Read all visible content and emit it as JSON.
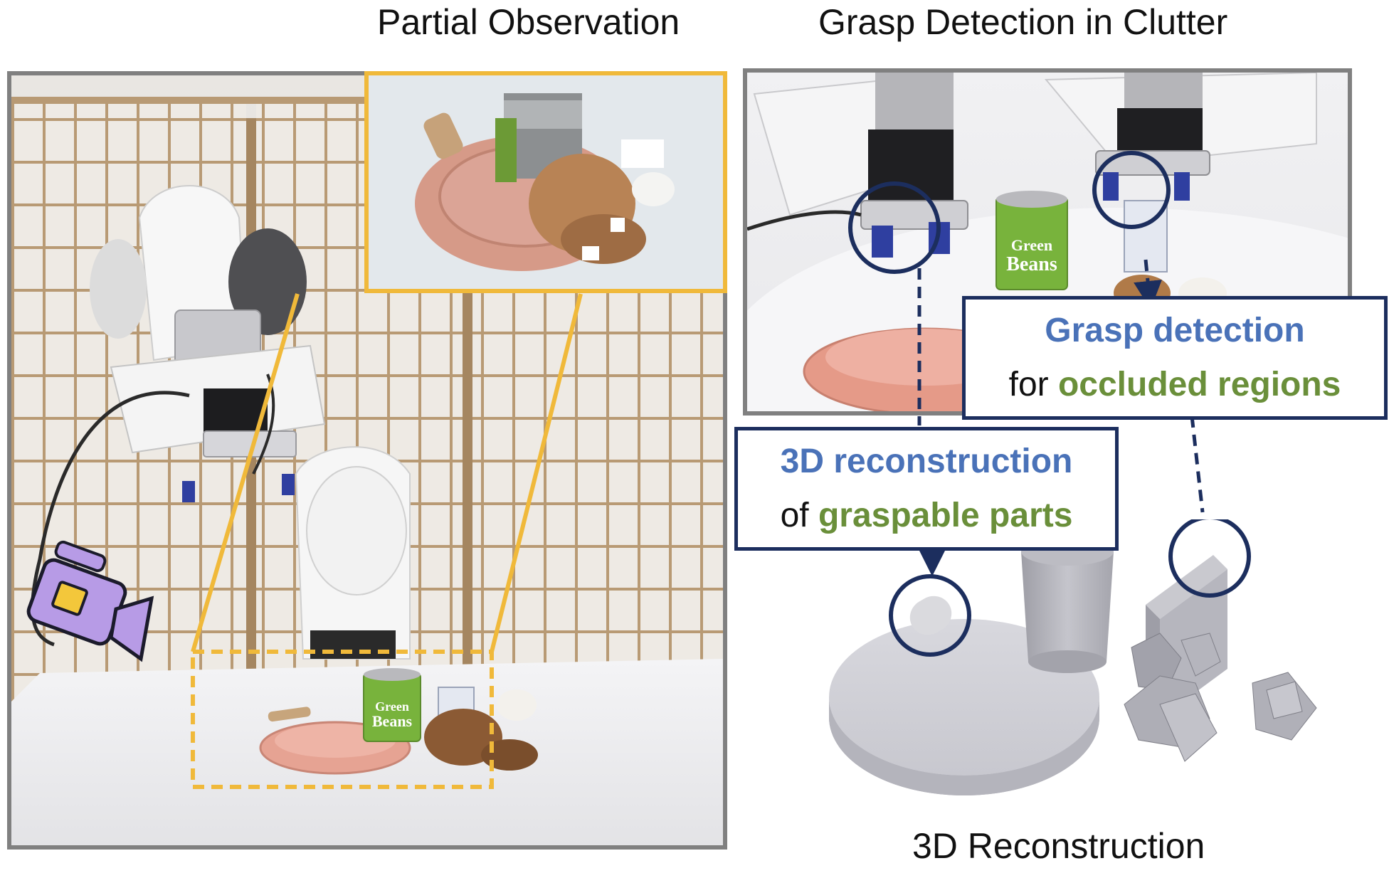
{
  "titles": {
    "partial_observation": "Partial Observation",
    "grasp_detection": "Grasp Detection in Clutter",
    "reconstruction": "3D Reconstruction"
  },
  "callout_grasp": {
    "line1_highlight": "Grasp detection",
    "line2_prefix": "for ",
    "line2_highlight": "occluded regions"
  },
  "callout_recon": {
    "line1_highlight": "3D reconstruction",
    "line2_prefix": "of ",
    "line2_highlight": "graspable parts"
  },
  "can_label": {
    "line1": "Green",
    "line2": "Beans"
  },
  "colors": {
    "accent_yellow": "#f0b93a",
    "callout_border": "#1c2e5e",
    "highlight_blue": "#4a72b8",
    "highlight_green": "#6a8f3a",
    "frame_gray": "#808080",
    "camera_purple": "#b79be6"
  },
  "icons": [
    "video-camera-icon"
  ]
}
